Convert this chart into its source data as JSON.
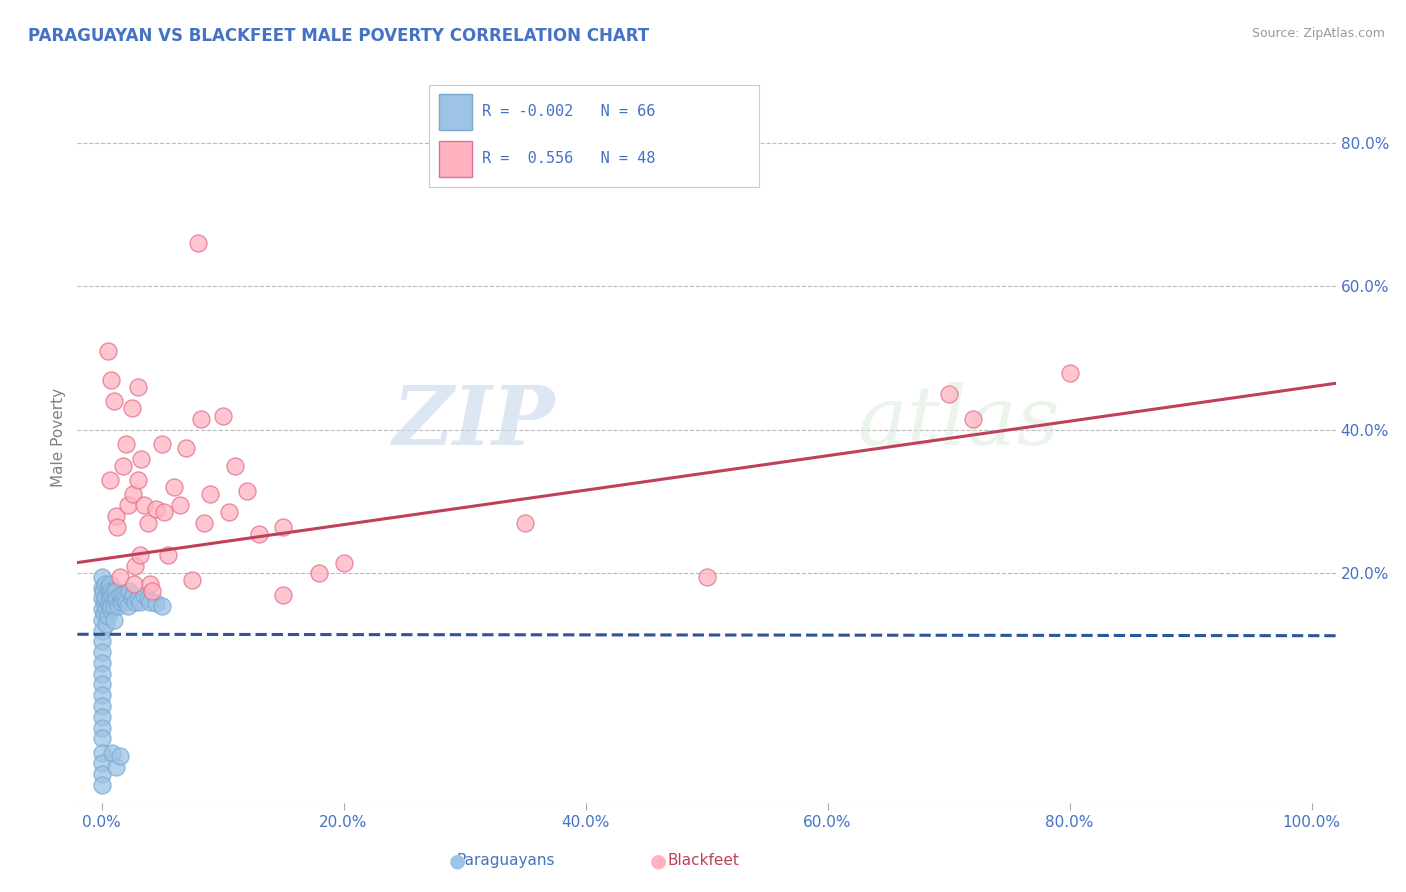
{
  "title": "PARAGUAYAN VS BLACKFEET MALE POVERTY CORRELATION CHART",
  "source": "Source: ZipAtlas.com",
  "xlabel_ticks": [
    "0.0%",
    "20.0%",
    "40.0%",
    "60.0%",
    "80.0%",
    "100.0%"
  ],
  "xlabel_vals": [
    0.0,
    0.2,
    0.4,
    0.6,
    0.8,
    1.0
  ],
  "ylabel": "Male Poverty",
  "ylabel_ticks": [
    "20.0%",
    "40.0%",
    "60.0%",
    "80.0%"
  ],
  "ylabel_vals": [
    0.2,
    0.4,
    0.6,
    0.8
  ],
  "title_color": "#4472C4",
  "source_color": "#999999",
  "axis_label_color": "#808080",
  "tick_color": "#4472C4",
  "watermark_zip": "ZIP",
  "watermark_atlas": "atlas",
  "paraguayan_color": "#9DC3E6",
  "paraguayan_edge": "#7AAAD0",
  "blackfeet_color": "#FFB3C1",
  "blackfeet_edge": "#E07090",
  "paraguayan_line_color": "#2F5597",
  "blackfeet_line_color": "#C0405A",
  "grid_color": "#BBBBBB",
  "background_color": "#FFFFFF",
  "legend_box_color": "#F0F0F0",
  "legend_border_color": "#CCCCCC",
  "paraguayan_scatter": [
    [
      0.0,
      0.195
    ],
    [
      0.0,
      0.18
    ],
    [
      0.0,
      0.165
    ],
    [
      0.0,
      0.15
    ],
    [
      0.0,
      0.135
    ],
    [
      0.0,
      0.12
    ],
    [
      0.0,
      0.105
    ],
    [
      0.0,
      0.09
    ],
    [
      0.0,
      0.075
    ],
    [
      0.0,
      0.06
    ],
    [
      0.0,
      0.045
    ],
    [
      0.0,
      0.03
    ],
    [
      0.0,
      0.015
    ],
    [
      0.0,
      0.0
    ],
    [
      0.0,
      -0.015
    ],
    [
      0.0,
      -0.03
    ],
    [
      0.0,
      -0.05
    ],
    [
      0.0,
      -0.065
    ],
    [
      0.0,
      -0.08
    ],
    [
      0.0,
      -0.095
    ],
    [
      0.001,
      0.175
    ],
    [
      0.002,
      0.16
    ],
    [
      0.002,
      0.145
    ],
    [
      0.003,
      0.185
    ],
    [
      0.003,
      0.165
    ],
    [
      0.004,
      0.15
    ],
    [
      0.004,
      0.13
    ],
    [
      0.005,
      0.18
    ],
    [
      0.005,
      0.16
    ],
    [
      0.005,
      0.14
    ],
    [
      0.006,
      0.175
    ],
    [
      0.006,
      0.155
    ],
    [
      0.007,
      0.185
    ],
    [
      0.007,
      0.165
    ],
    [
      0.007,
      0.15
    ],
    [
      0.008,
      0.175
    ],
    [
      0.008,
      0.155
    ],
    [
      0.009,
      0.17
    ],
    [
      0.009,
      -0.05
    ],
    [
      0.01,
      0.175
    ],
    [
      0.01,
      0.155
    ],
    [
      0.01,
      0.135
    ],
    [
      0.011,
      0.165
    ],
    [
      0.012,
      0.175
    ],
    [
      0.012,
      -0.07
    ],
    [
      0.013,
      0.165
    ],
    [
      0.014,
      0.155
    ],
    [
      0.015,
      0.17
    ],
    [
      0.015,
      -0.055
    ],
    [
      0.016,
      0.16
    ],
    [
      0.017,
      0.165
    ],
    [
      0.018,
      0.17
    ],
    [
      0.019,
      0.165
    ],
    [
      0.02,
      0.16
    ],
    [
      0.022,
      0.155
    ],
    [
      0.023,
      0.175
    ],
    [
      0.025,
      0.165
    ],
    [
      0.026,
      0.17
    ],
    [
      0.028,
      0.16
    ],
    [
      0.03,
      0.165
    ],
    [
      0.032,
      0.16
    ],
    [
      0.035,
      0.17
    ],
    [
      0.038,
      0.165
    ],
    [
      0.04,
      0.16
    ],
    [
      0.045,
      0.158
    ],
    [
      0.05,
      0.155
    ]
  ],
  "blackfeet_scatter": [
    [
      0.005,
      0.51
    ],
    [
      0.007,
      0.33
    ],
    [
      0.008,
      0.47
    ],
    [
      0.01,
      0.44
    ],
    [
      0.012,
      0.28
    ],
    [
      0.013,
      0.265
    ],
    [
      0.015,
      0.195
    ],
    [
      0.018,
      0.35
    ],
    [
      0.02,
      0.38
    ],
    [
      0.022,
      0.295
    ],
    [
      0.025,
      0.43
    ],
    [
      0.026,
      0.31
    ],
    [
      0.027,
      0.185
    ],
    [
      0.028,
      0.21
    ],
    [
      0.03,
      0.46
    ],
    [
      0.03,
      0.33
    ],
    [
      0.032,
      0.225
    ],
    [
      0.033,
      0.36
    ],
    [
      0.035,
      0.295
    ],
    [
      0.038,
      0.27
    ],
    [
      0.04,
      0.185
    ],
    [
      0.042,
      0.175
    ],
    [
      0.045,
      0.29
    ],
    [
      0.05,
      0.38
    ],
    [
      0.052,
      0.285
    ],
    [
      0.055,
      0.225
    ],
    [
      0.06,
      0.32
    ],
    [
      0.065,
      0.295
    ],
    [
      0.07,
      0.375
    ],
    [
      0.075,
      0.19
    ],
    [
      0.08,
      0.66
    ],
    [
      0.082,
      0.415
    ],
    [
      0.085,
      0.27
    ],
    [
      0.09,
      0.31
    ],
    [
      0.1,
      0.42
    ],
    [
      0.105,
      0.285
    ],
    [
      0.11,
      0.35
    ],
    [
      0.12,
      0.315
    ],
    [
      0.13,
      0.255
    ],
    [
      0.15,
      0.17
    ],
    [
      0.15,
      0.265
    ],
    [
      0.18,
      0.2
    ],
    [
      0.2,
      0.215
    ],
    [
      0.35,
      0.27
    ],
    [
      0.5,
      0.195
    ],
    [
      0.7,
      0.45
    ],
    [
      0.72,
      0.415
    ],
    [
      0.8,
      0.48
    ]
  ],
  "xlim": [
    -0.02,
    1.02
  ],
  "ylim": [
    -0.12,
    0.9
  ],
  "paraguayan_trend_y_at_0": 0.115,
  "paraguayan_trend_y_at_1": 0.113,
  "blackfeet_trend_y_at_0": 0.215,
  "blackfeet_trend_y_at_1": 0.465
}
